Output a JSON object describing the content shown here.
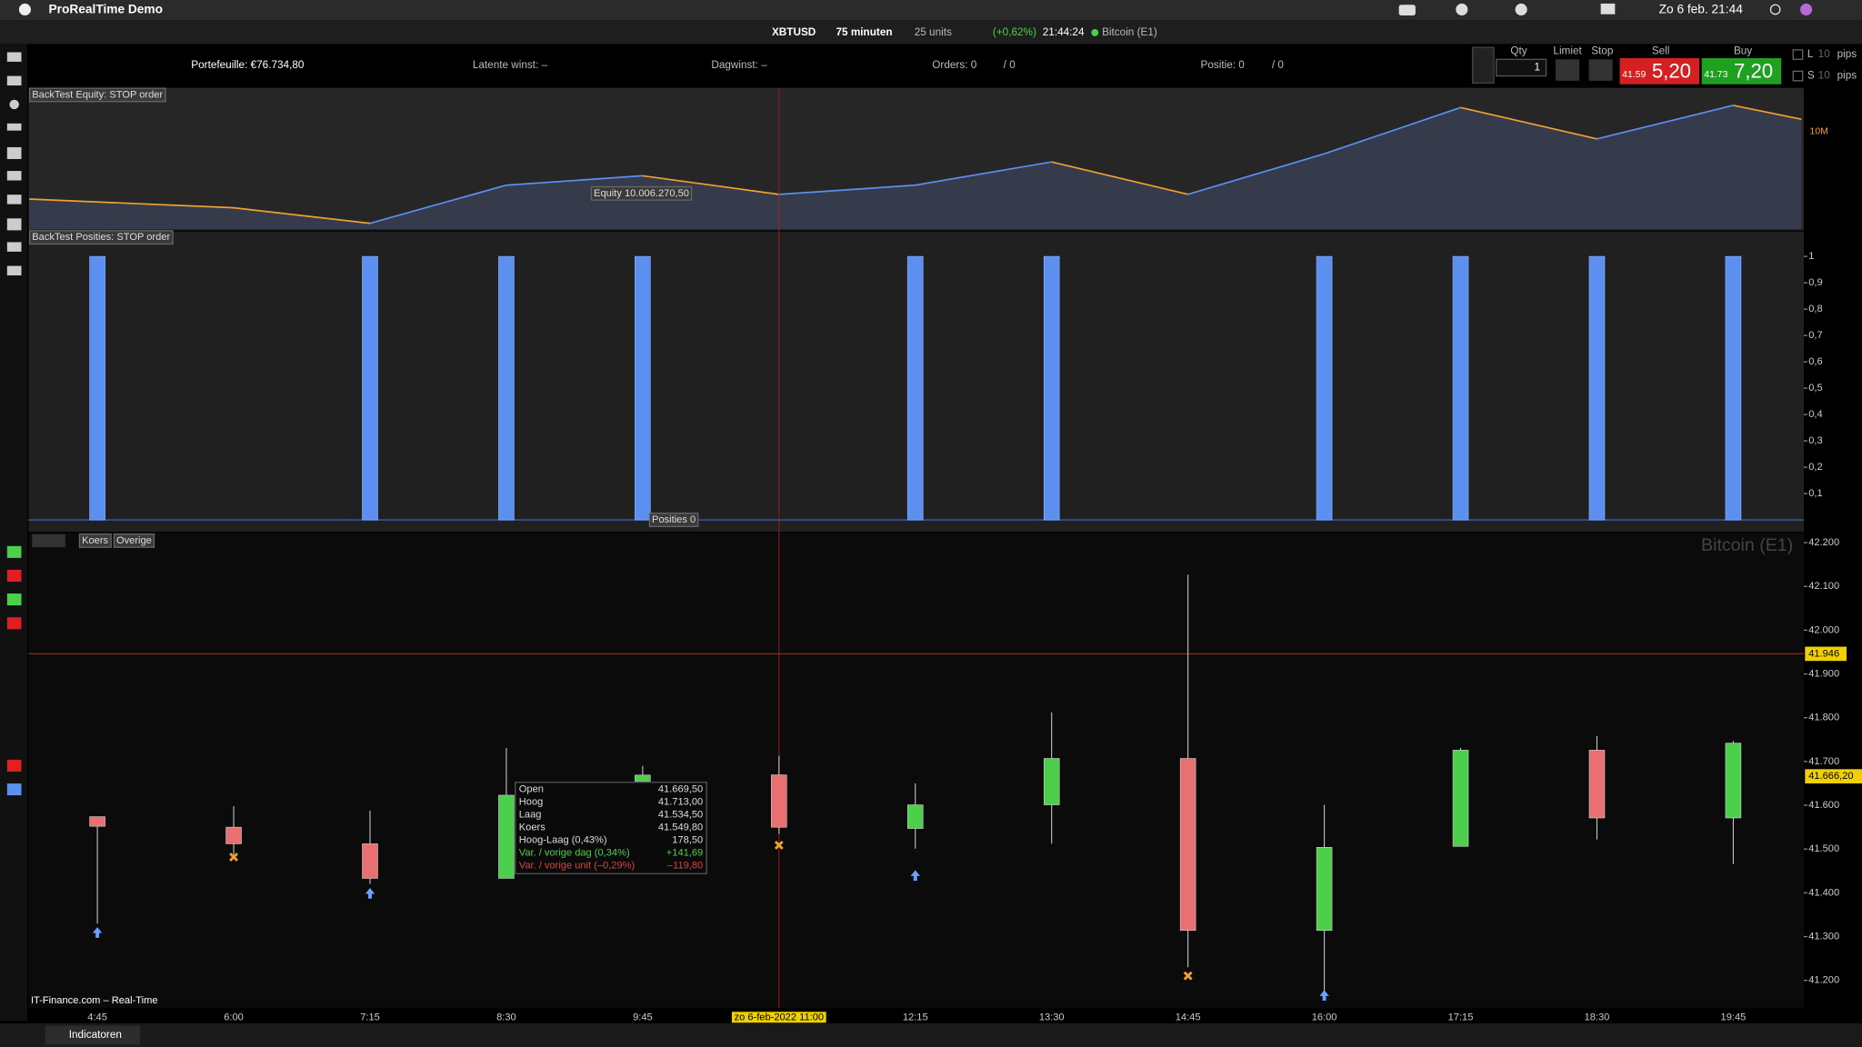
{
  "menubar": {
    "app": "ProRealTime Demo",
    "datetime": "Zo 6 feb.  21:44"
  },
  "toolbar": {
    "symbol": "XBTUSD",
    "interval": "75 minuten",
    "units": "25 units",
    "change": "(+0,62%)",
    "time": "21:44:24",
    "instrument": "Bitcoin (E1)"
  },
  "account": {
    "portfolio": "Portefeuille: €76.734,80",
    "latent": "Latente winst: –",
    "day_gain": "Dagwinst: –",
    "orders": "Orders: 0",
    "orders_pending": "/ 0",
    "position": "Positie: 0",
    "position_pending": "/ 0"
  },
  "order_ticket": {
    "qty_label": "Qty",
    "qty": "1",
    "limit": "Limiet",
    "stop": "Stop",
    "sell": "Sell",
    "buy": "Buy",
    "sell_prefix": "41.59",
    "sell_price": "5,20",
    "buy_prefix": "41.73",
    "buy_price": "7,20",
    "l_label": "L",
    "s_label": "S",
    "l_pips": "10",
    "s_pips": "10",
    "pips": "pips"
  },
  "bottom_bar": {
    "indicators": "Indicatoren"
  },
  "chart_data": [
    {
      "type": "line",
      "title": "BackTest Equity: STOP order",
      "x": [
        -0.5,
        1,
        2,
        3,
        4,
        5,
        6,
        7,
        8,
        9,
        10,
        11,
        12,
        12.5
      ],
      "values": [
        10004100,
        10000000,
        9992700,
        10010600,
        10015000,
        10006270.5,
        10010600,
        10021500,
        10006300,
        10025300,
        10047000,
        10032300,
        10048000,
        10041500
      ],
      "xlim": [
        -0.5,
        12.5
      ],
      "ylim": [
        9990000,
        10054000
      ],
      "up_color": "#5b8ff0",
      "down_color": "#f0a030",
      "cursor_label": "Equity  10.006.270,50",
      "scale_label": "10M"
    },
    {
      "type": "bar",
      "title": "BackTest Posities: STOP order",
      "x": [
        0,
        2,
        3,
        4,
        6,
        7,
        9,
        10,
        11,
        12
      ],
      "values": [
        1,
        1,
        1,
        1,
        1,
        1,
        1,
        1,
        1,
        1
      ],
      "xlim": [
        -0.5,
        12.5
      ],
      "ylim": [
        0,
        1
      ],
      "color": "#5b8ff0",
      "cursor_label": "Posities  0",
      "yticks": [
        {
          "value": 0.1,
          "label": "0,1"
        },
        {
          "value": 0.2,
          "label": "0,2"
        },
        {
          "value": 0.3,
          "label": "0,3"
        },
        {
          "value": 0.4,
          "label": "0,4"
        },
        {
          "value": 0.5,
          "label": "0,5"
        },
        {
          "value": 0.6,
          "label": "0,6"
        },
        {
          "value": 0.7,
          "label": "0,7"
        },
        {
          "value": 0.8,
          "label": "0,8"
        },
        {
          "value": 0.9,
          "label": "0,9"
        },
        1
      ]
    },
    {
      "type": "candlestick",
      "title": "Koers",
      "extra_label": "Overige",
      "watermark": "Bitcoin (E1)",
      "source": "IT-Finance.com – Real-Time",
      "categories": [
        "4:45",
        "6:00",
        "7:15",
        "8:30",
        "9:45",
        null,
        "12:15",
        "13:30",
        "14:45",
        "16:00",
        "17:15",
        "18:30",
        "19:45"
      ],
      "open": [
        41574,
        41550,
        41512,
        41433,
        41655,
        41669.5,
        41547,
        41601,
        41707,
        41314,
        41506,
        41726,
        41571
      ],
      "high": [
        41574,
        41598,
        41588,
        41731,
        41690,
        41713,
        41650,
        41812,
        42127,
        41601,
        41731,
        41758,
        41747
      ],
      "low": [
        41330,
        41487,
        41420,
        41433,
        41650,
        41534.5,
        41501,
        41512,
        41230,
        41176,
        41506,
        41522,
        41466
      ],
      "close": [
        41552,
        41512,
        41433,
        41623,
        41669,
        41549.8,
        41601,
        41707,
        41314,
        41504,
        41726,
        41571,
        41742
      ],
      "up_color": "#4cd04c",
      "down_color": "#e87070",
      "ylim": [
        41140,
        42222
      ],
      "yticks": [
        {
          "value": 41200,
          "label": "41.200"
        },
        {
          "value": 41300,
          "label": "41.300"
        },
        {
          "value": 41400,
          "label": "41.400"
        },
        {
          "value": 41500,
          "label": "41.500"
        },
        {
          "value": 41600,
          "label": "41.600"
        },
        {
          "value": 41700,
          "label": "41.700"
        },
        {
          "value": 41800,
          "label": "41.800"
        },
        {
          "value": 41900,
          "label": "41.900"
        },
        {
          "value": 42000,
          "label": "42.000"
        },
        {
          "value": 42100,
          "label": "42.100"
        },
        {
          "value": 42200,
          "label": "42.200"
        }
      ],
      "last_price": {
        "value": 41946,
        "label": "41.946"
      },
      "close_price": {
        "value": 41666.2,
        "label": "41.666,20"
      },
      "cursor_label": "zo 6-feb-2022 11:00",
      "tooltip": [
        {
          "label": "Open",
          "value": "41.669,50"
        },
        {
          "label": "Hoog",
          "value": "41.713,00"
        },
        {
          "label": "Laag",
          "value": "41.534,50"
        },
        {
          "label": "Koers",
          "value": "41.549,80"
        },
        {
          "label": "Hoog-Laag (0,43%)",
          "value": "178,50"
        },
        {
          "label": "Var. / vorige dag (0,34%)",
          "value": "+141,69"
        },
        {
          "label": "Var. / vorige unit (–0,29%)",
          "value": "–119,80"
        }
      ]
    }
  ]
}
